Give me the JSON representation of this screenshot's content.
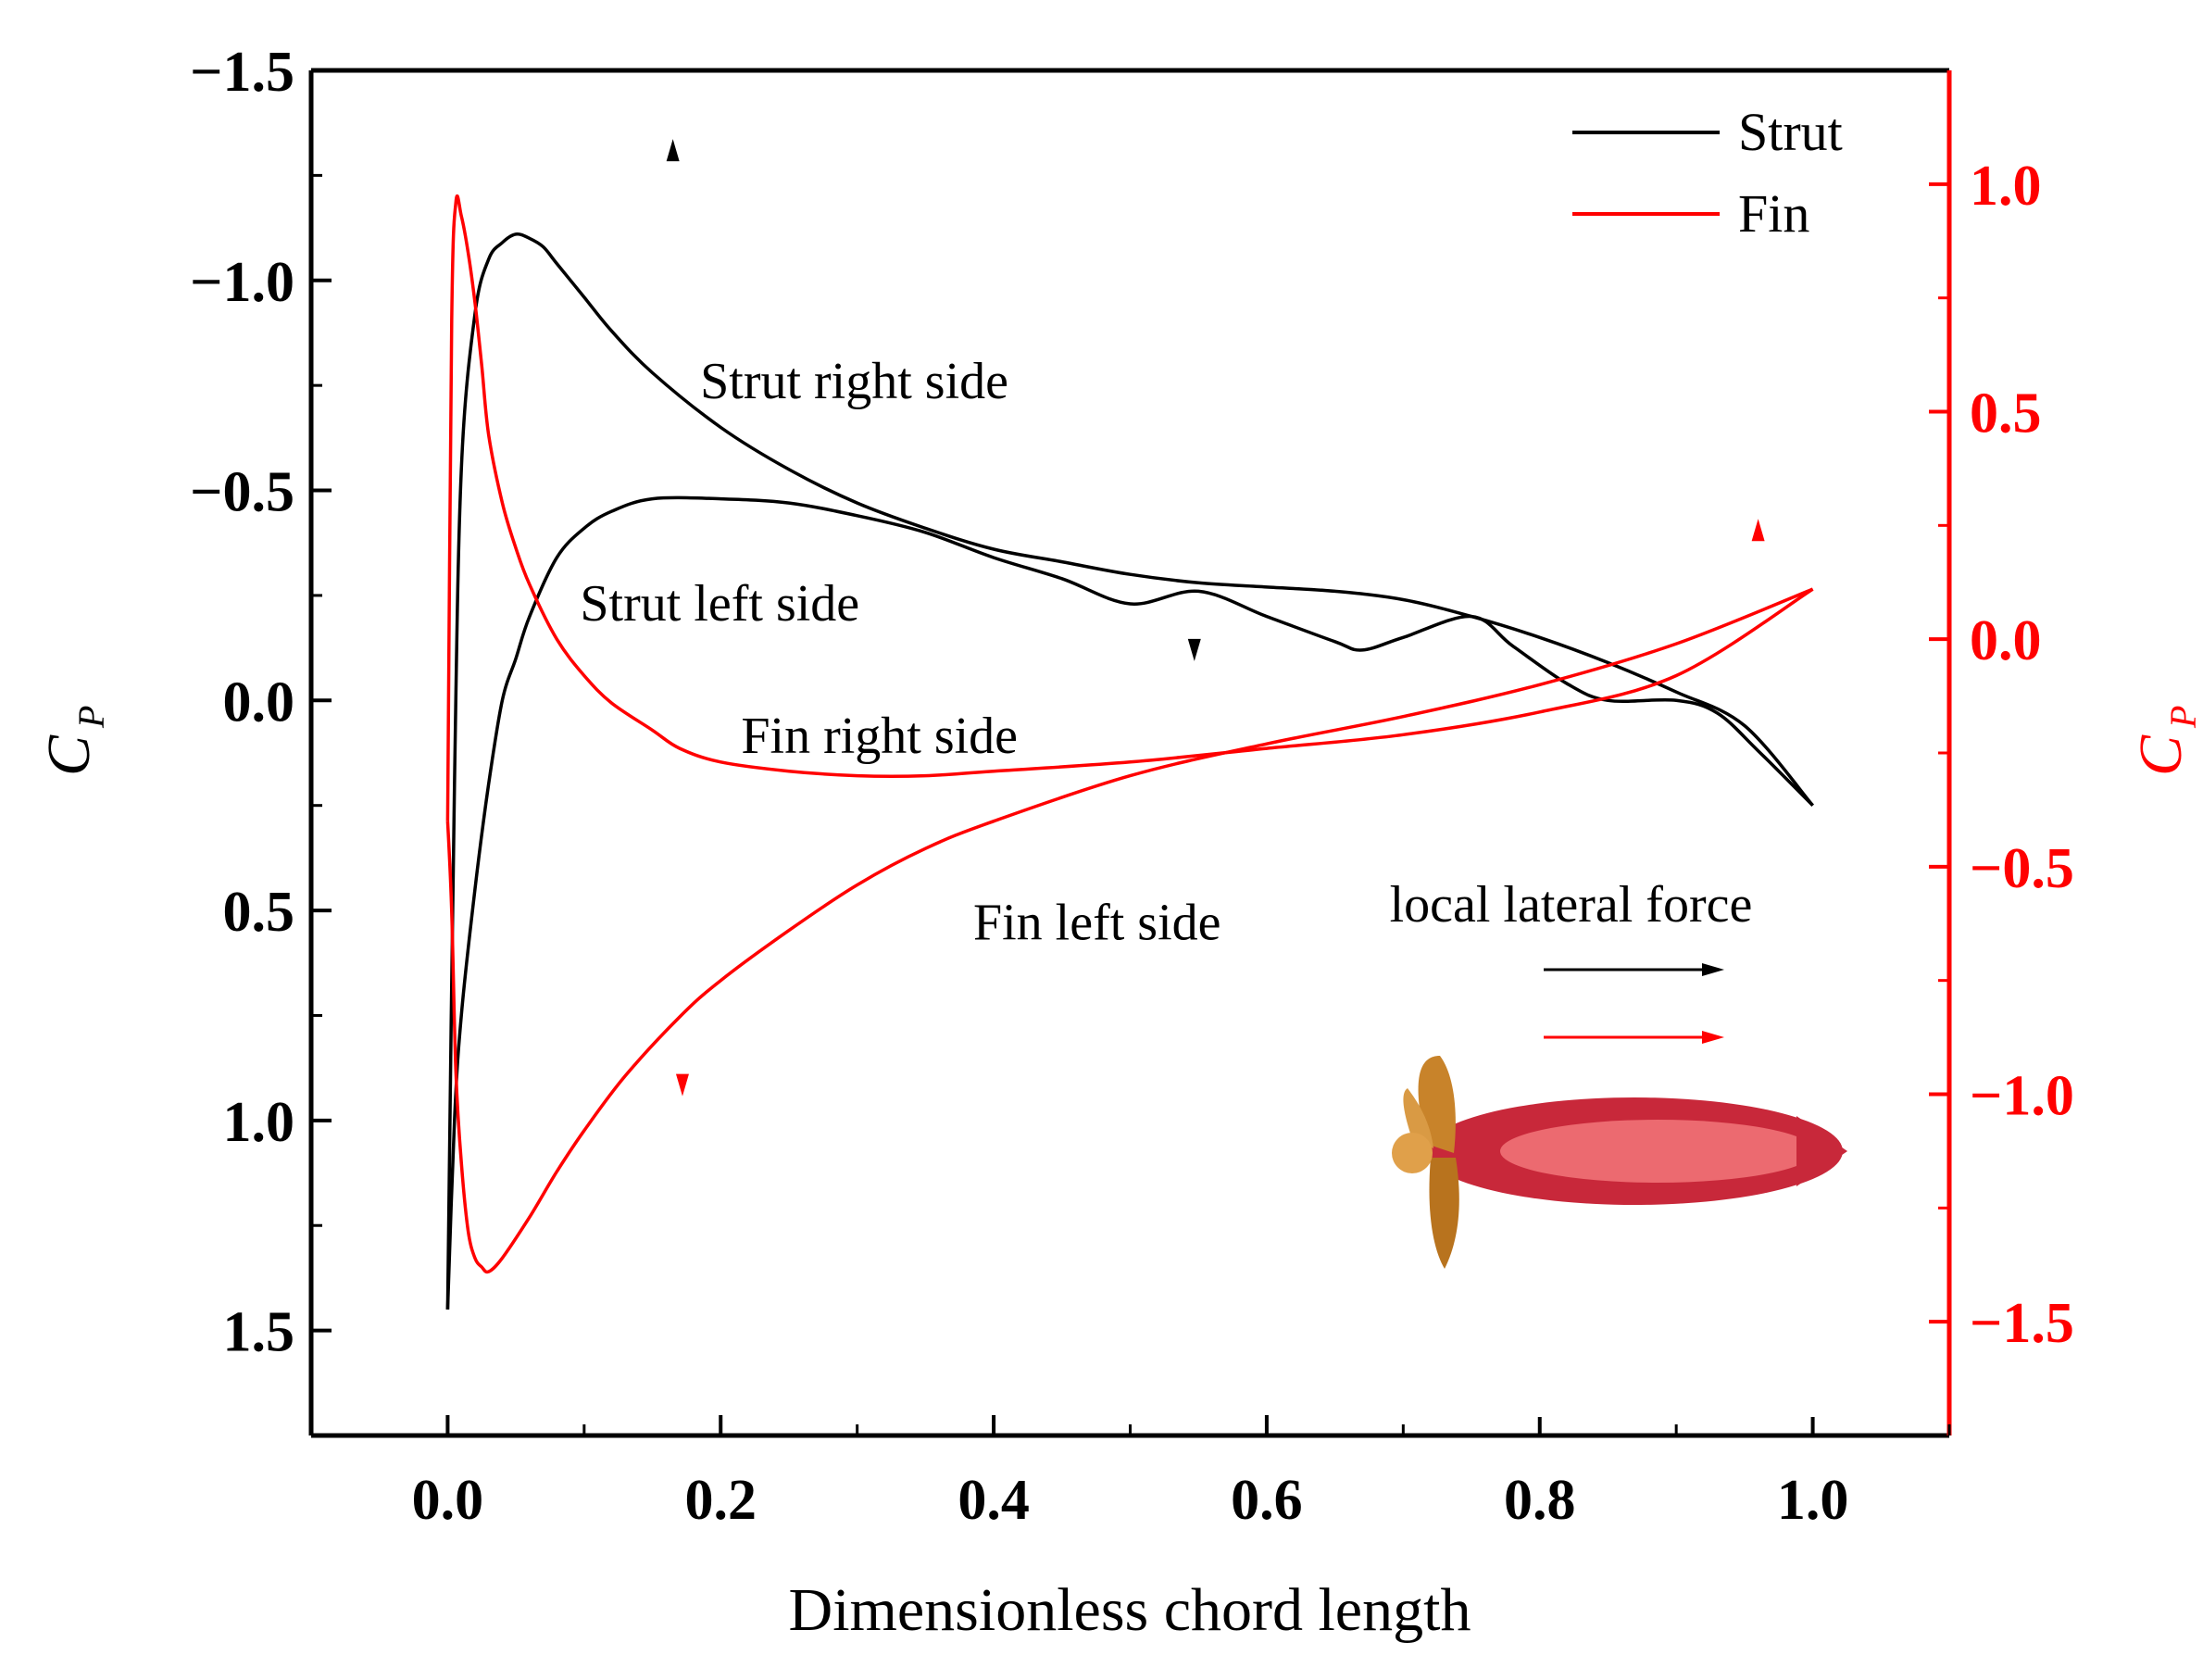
{
  "chart_data": {
    "type": "line",
    "xlabel": "Dimensionless chord length",
    "ylabel_left": "C",
    "ylabel_left_sub": "P",
    "ylabel_right": "C",
    "ylabel_right_sub": "P",
    "xlim": [
      -0.1,
      1.1
    ],
    "ylim_left": [
      1.75,
      -1.5
    ],
    "ylim_right": [
      -1.75,
      1.25
    ],
    "x_ticks": [
      "0.0",
      "0.2",
      "0.4",
      "0.6",
      "0.8",
      "1.0"
    ],
    "x_tick_values": [
      0.0,
      0.2,
      0.4,
      0.6,
      0.8,
      1.0
    ],
    "y_left_ticks": [
      "−1.5",
      "−1.0",
      "−0.5",
      "0.0",
      "0.5",
      "1.0",
      "1.5"
    ],
    "y_left_tick_values": [
      -1.5,
      -1.0,
      -0.5,
      0.0,
      0.5,
      1.0,
      1.5
    ],
    "y_right_ticks": [
      "1.0",
      "0.5",
      "0.0",
      "−0.5",
      "−1.0",
      "−1.5"
    ],
    "y_right_tick_values": [
      1.0,
      0.5,
      0.0,
      -0.5,
      -1.0,
      -1.5
    ],
    "colors": {
      "strut": "#000000",
      "fin": "#ff0000",
      "axis_right": "#ff0000"
    },
    "legend": [
      {
        "name": "Strut",
        "color": "#000000"
      },
      {
        "name": "Fin",
        "color": "#ff0000"
      }
    ],
    "legend_position": "top-right",
    "series": [
      {
        "name": "Strut right side",
        "axis": "left",
        "color": "#000000",
        "x": [
          0.0,
          0.005,
          0.01,
          0.02,
          0.03,
          0.04,
          0.05,
          0.06,
          0.07,
          0.08,
          0.1,
          0.12,
          0.15,
          0.2,
          0.25,
          0.3,
          0.35,
          0.4,
          0.45,
          0.5,
          0.55,
          0.6,
          0.65,
          0.7,
          0.75,
          0.8,
          0.85,
          0.9,
          0.95,
          1.0
        ],
        "y": [
          1.45,
          0.2,
          -0.55,
          -0.92,
          -1.05,
          -1.09,
          -1.11,
          -1.1,
          -1.08,
          -1.04,
          -0.96,
          -0.88,
          -0.78,
          -0.65,
          -0.55,
          -0.47,
          -0.41,
          -0.36,
          -0.33,
          -0.3,
          -0.28,
          -0.27,
          -0.26,
          -0.24,
          -0.2,
          -0.15,
          -0.09,
          -0.02,
          0.06,
          0.25
        ]
      },
      {
        "name": "Strut left side",
        "axis": "left",
        "color": "#000000",
        "x": [
          0.0,
          0.005,
          0.01,
          0.02,
          0.03,
          0.04,
          0.05,
          0.06,
          0.08,
          0.1,
          0.12,
          0.15,
          0.2,
          0.25,
          0.3,
          0.35,
          0.4,
          0.45,
          0.5,
          0.55,
          0.6,
          0.65,
          0.67,
          0.7,
          0.75,
          0.78,
          0.82,
          0.85,
          0.9,
          0.93,
          0.96,
          1.0
        ],
        "y": [
          1.45,
          1.0,
          0.75,
          0.45,
          0.2,
          0.0,
          -0.1,
          -0.2,
          -0.34,
          -0.41,
          -0.45,
          -0.48,
          -0.48,
          -0.47,
          -0.44,
          -0.4,
          -0.34,
          -0.29,
          -0.23,
          -0.26,
          -0.2,
          -0.14,
          -0.12,
          -0.15,
          -0.2,
          -0.13,
          -0.04,
          0.0,
          0.0,
          0.03,
          0.12,
          0.25
        ]
      },
      {
        "name": "Fin right side",
        "axis": "right",
        "color": "#ff0000",
        "x": [
          0.0,
          0.003,
          0.006,
          0.01,
          0.015,
          0.02,
          0.025,
          0.03,
          0.04,
          0.05,
          0.06,
          0.08,
          0.1,
          0.12,
          0.15,
          0.17,
          0.2,
          0.25,
          0.3,
          0.35,
          0.4,
          0.5,
          0.6,
          0.7,
          0.8,
          0.9,
          1.0
        ],
        "y": [
          -0.4,
          0.7,
          0.96,
          0.93,
          0.85,
          0.74,
          0.6,
          0.45,
          0.3,
          0.2,
          0.12,
          0.0,
          -0.08,
          -0.14,
          -0.2,
          -0.24,
          -0.27,
          -0.29,
          -0.3,
          -0.3,
          -0.29,
          -0.27,
          -0.24,
          -0.21,
          -0.16,
          -0.08,
          0.11
        ]
      },
      {
        "name": "Fin left side",
        "axis": "right",
        "color": "#ff0000",
        "x": [
          0.0,
          0.003,
          0.006,
          0.01,
          0.015,
          0.02,
          0.025,
          0.03,
          0.04,
          0.06,
          0.08,
          0.1,
          0.13,
          0.17,
          0.2,
          0.25,
          0.3,
          0.35,
          0.4,
          0.5,
          0.6,
          0.7,
          0.8,
          0.9,
          1.0
        ],
        "y": [
          -0.4,
          -0.6,
          -0.95,
          -1.15,
          -1.3,
          -1.36,
          -1.38,
          -1.39,
          -1.36,
          -1.27,
          -1.17,
          -1.08,
          -0.96,
          -0.83,
          -0.75,
          -0.64,
          -0.54,
          -0.46,
          -0.4,
          -0.3,
          -0.23,
          -0.17,
          -0.1,
          -0.01,
          0.11
        ]
      }
    ],
    "annotations": [
      {
        "text": "Strut right side",
        "x": 0.185,
        "y": -0.72,
        "axis": "left"
      },
      {
        "text": "Strut left side",
        "x": 0.097,
        "y": -0.19,
        "axis": "left"
      },
      {
        "text": "Fin right side",
        "x": 0.215,
        "y": -0.25,
        "axis": "right"
      },
      {
        "text": "Fin left side",
        "x": 0.385,
        "y": -0.66,
        "axis": "right"
      },
      {
        "text": "local lateral force",
        "x": 0.69,
        "y": -0.62,
        "axis": "right"
      }
    ],
    "markers": [
      {
        "x": 0.165,
        "y": -1.31,
        "axis": "left",
        "dir": "up",
        "color": "#000000"
      },
      {
        "x": 0.547,
        "y": -0.12,
        "axis": "left",
        "dir": "down",
        "color": "#000000"
      },
      {
        "x": 0.96,
        "y": 0.24,
        "axis": "right",
        "dir": "up",
        "color": "#ff0000"
      },
      {
        "x": 0.172,
        "y": -0.98,
        "axis": "right",
        "dir": "down",
        "color": "#ff0000"
      }
    ]
  }
}
